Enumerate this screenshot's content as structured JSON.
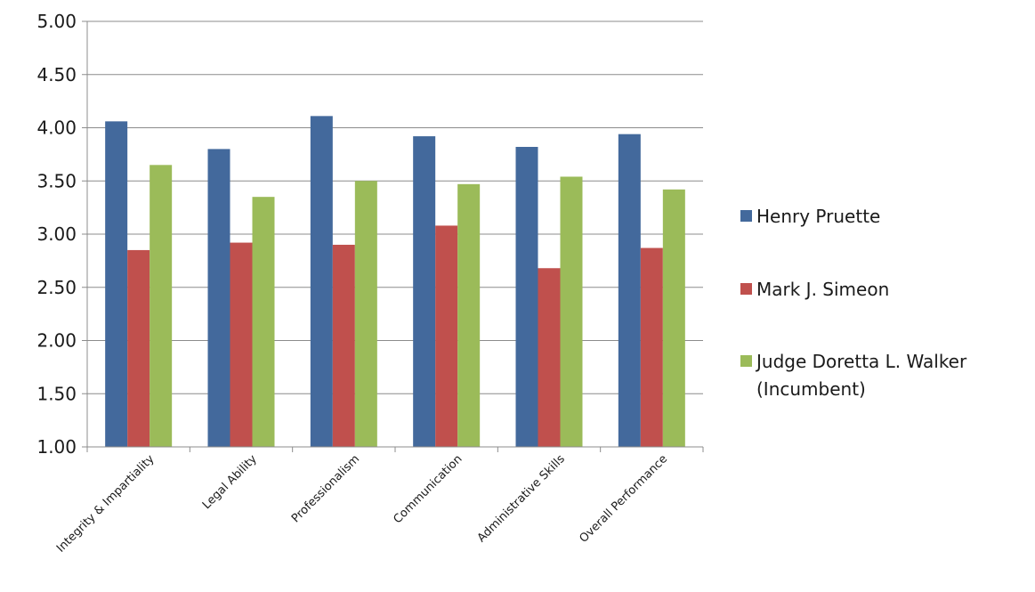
{
  "chart_data": {
    "type": "bar",
    "categories": [
      "Integrity & Impartiality",
      "Legal Ability",
      "Professionalism",
      "Communication",
      "Administrative Skills",
      "Overall Performance"
    ],
    "series": [
      {
        "name": "Henry Pruette",
        "color": "#43699c",
        "values": [
          4.06,
          3.8,
          4.11,
          3.92,
          3.82,
          3.94
        ]
      },
      {
        "name": "Mark J. Simeon",
        "color": "#c0504d",
        "values": [
          2.85,
          2.92,
          2.9,
          3.08,
          2.68,
          2.87
        ]
      },
      {
        "name_lines": [
          "Judge Doretta L. Walker",
          "(Incumbent)"
        ],
        "color": "#9bbb59",
        "values": [
          3.65,
          3.35,
          3.5,
          3.47,
          3.54,
          3.42
        ]
      }
    ],
    "ylim": [
      1.0,
      5.0
    ],
    "y_ticks": [
      "1.00",
      "1.50",
      "2.00",
      "2.50",
      "3.00",
      "3.50",
      "4.00",
      "4.50",
      "5.00"
    ],
    "y_tick_values": [
      1.0,
      1.5,
      2.0,
      2.5,
      3.0,
      3.5,
      4.0,
      4.5,
      5.0
    ],
    "grid": true,
    "legend": "right",
    "title": "",
    "xlabel": "",
    "ylabel": ""
  }
}
